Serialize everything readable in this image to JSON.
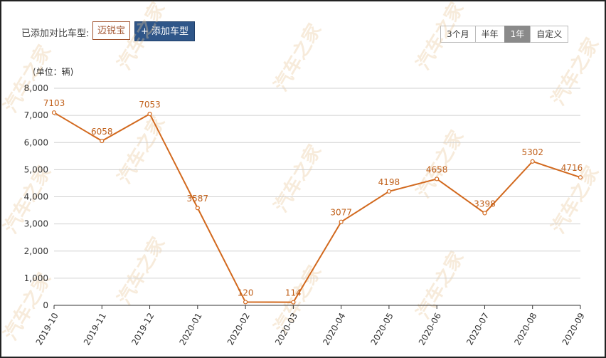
{
  "toolbar": {
    "compare_label": "已添加对比车型:",
    "model_tag": "迈锐宝",
    "add_button": "+ 添加车型"
  },
  "range_buttons": [
    {
      "label": "3个月",
      "active": false
    },
    {
      "label": "半年",
      "active": false
    },
    {
      "label": "1年",
      "active": true
    },
    {
      "label": "自定义",
      "active": false
    }
  ],
  "colors": {
    "line": "#d2691e",
    "label": "#c0601a",
    "accent": "#2f5689"
  },
  "chart_data": {
    "type": "line",
    "unit_label": "(单位：辆)",
    "categories": [
      "2019-10",
      "2019-11",
      "2019-12",
      "2020-01",
      "2020-02",
      "2020-03",
      "2020-04",
      "2020-05",
      "2020-06",
      "2020-07",
      "2020-08",
      "2020-09"
    ],
    "values": [
      7103,
      6058,
      7053,
      3587,
      120,
      114,
      3077,
      4198,
      4658,
      3398,
      5302,
      4716
    ],
    "yticks": [
      "0",
      "1,000",
      "2,000",
      "3,000",
      "4,000",
      "5,000",
      "6,000",
      "7,000",
      "8,000"
    ],
    "ylim": [
      0,
      8000
    ],
    "grid": true
  },
  "watermark": "汽车之家"
}
